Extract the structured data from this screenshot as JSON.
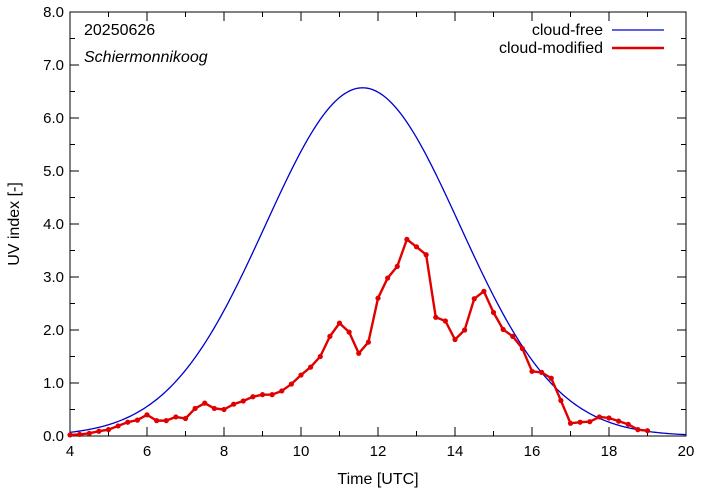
{
  "chart_data": {
    "type": "line",
    "xlabel": "Time  [UTC]",
    "ylabel": "UV index  [-]",
    "xlim": [
      4,
      20
    ],
    "ylim": [
      0,
      8
    ],
    "x_ticks": [
      "4",
      "6",
      "8",
      "10",
      "12",
      "14",
      "16",
      "18",
      "20"
    ],
    "y_ticks": [
      "0.0",
      "1.0",
      "2.0",
      "3.0",
      "4.0",
      "5.0",
      "6.0",
      "7.0",
      "8.0"
    ],
    "annotations": [
      "20250626",
      "Schiermonnikoog"
    ],
    "legend_position": "top-right",
    "grid": false,
    "colors": {
      "cloud_free": "#0000cc",
      "cloud_modified": "#e00000"
    },
    "series": [
      {
        "name": "cloud-free",
        "color": "#0000cc",
        "peak_x": 11.6,
        "peak_y": 6.57,
        "x": [
          4.0,
          4.5,
          5.0,
          5.5,
          6.0,
          6.5,
          7.0,
          7.5,
          8.0,
          8.5,
          9.0,
          9.5,
          10.0,
          10.5,
          11.0,
          11.5,
          11.6,
          12.0,
          12.5,
          13.0,
          13.5,
          14.0,
          14.5,
          15.0,
          15.5,
          16.0,
          16.5,
          17.0,
          17.5,
          18.0,
          18.5,
          19.0,
          19.5,
          20.0
        ],
        "y": [
          0.09,
          0.18,
          0.33,
          0.55,
          0.85,
          1.24,
          1.71,
          2.25,
          2.84,
          3.46,
          4.08,
          4.67,
          5.21,
          5.7,
          6.14,
          6.5,
          6.57,
          6.55,
          6.35,
          5.95,
          5.45,
          4.85,
          4.2,
          3.55,
          2.9,
          2.28,
          1.7,
          1.18,
          0.75,
          0.44,
          0.25,
          0.14,
          0.08,
          0.05
        ]
      },
      {
        "name": "cloud-modified",
        "color": "#e00000",
        "x": [
          4.0,
          4.25,
          4.5,
          4.75,
          5.0,
          5.25,
          5.5,
          5.75,
          6.0,
          6.25,
          6.5,
          6.75,
          7.0,
          7.25,
          7.5,
          7.75,
          8.0,
          8.25,
          8.5,
          8.75,
          9.0,
          9.25,
          9.5,
          9.75,
          10.0,
          10.25,
          10.5,
          10.75,
          11.0,
          11.25,
          11.5,
          11.75,
          12.0,
          12.25,
          12.5,
          12.75,
          13.0,
          13.25,
          13.5,
          13.75,
          14.0,
          14.25,
          14.5,
          14.75,
          15.0,
          15.25,
          15.5,
          15.75,
          16.0,
          16.25,
          16.5,
          16.75,
          17.0,
          17.25,
          17.5,
          17.75,
          18.0,
          18.25,
          18.5,
          18.75,
          19.0
        ],
        "y": [
          0.02,
          0.03,
          0.05,
          0.09,
          0.12,
          0.19,
          0.26,
          0.3,
          0.4,
          0.29,
          0.29,
          0.36,
          0.33,
          0.52,
          0.62,
          0.52,
          0.5,
          0.6,
          0.66,
          0.74,
          0.78,
          0.78,
          0.85,
          0.98,
          1.15,
          1.3,
          1.5,
          1.88,
          2.13,
          1.96,
          1.56,
          1.77,
          2.6,
          2.98,
          3.2,
          3.71,
          3.57,
          3.42,
          2.24,
          2.17,
          1.82,
          2.0,
          2.59,
          2.73,
          2.33,
          2.01,
          1.88,
          1.65,
          1.22,
          1.2,
          1.09,
          0.67,
          0.24,
          0.26,
          0.27,
          0.36,
          0.34,
          0.28,
          0.22,
          0.12,
          0.1
        ]
      }
    ]
  }
}
